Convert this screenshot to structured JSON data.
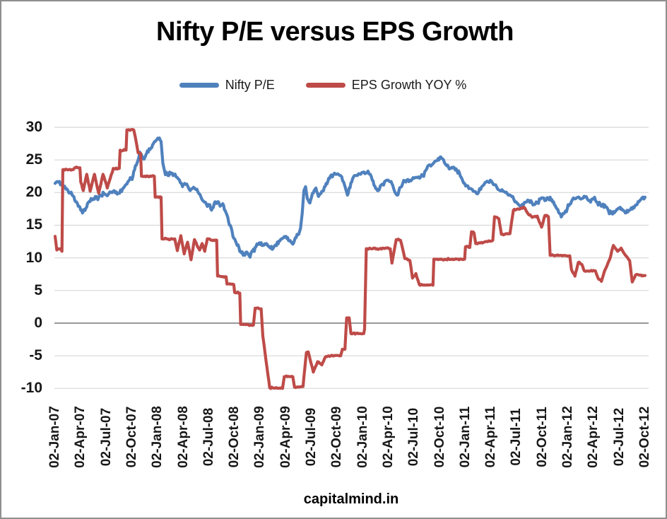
{
  "title": "Nifty P/E versus EPS Growth",
  "watermark": "capitalmind.in",
  "legend": [
    {
      "label": "Nifty P/E",
      "color": "#4F81BD"
    },
    {
      "label": "EPS Growth YOY %",
      "color": "#BE4B48"
    }
  ],
  "colors": {
    "gridline": "#d7d7d7",
    "zero_line": "#8a8a8a",
    "background": "#ffffff",
    "text": "#171717",
    "border": "#8f8f8f"
  },
  "chart_data": {
    "type": "line",
    "title": "Nifty P/E versus EPS Growth",
    "xlabel": "capitalmind.in",
    "ylabel": "",
    "x_unit": "months since 02-Jan-2007",
    "ylim": [
      -10,
      30
    ],
    "grid": true,
    "legend_position": "top",
    "y_ticks": [
      30,
      25,
      20,
      15,
      10,
      5,
      0,
      -5,
      -10
    ],
    "x_tick_month_offsets": [
      0,
      3,
      6,
      9,
      12,
      15,
      18,
      21,
      24,
      27,
      30,
      33,
      36,
      39,
      42,
      45,
      48,
      51,
      54,
      57,
      60,
      63,
      66,
      69
    ],
    "x_ticklabels": [
      "02-Jan-07",
      "02-Apr-07",
      "02-Jul-07",
      "02-Oct-07",
      "02-Jan-08",
      "02-Apr-08",
      "02-Jul-08",
      "02-Oct-08",
      "02-Jan-09",
      "02-Apr-09",
      "02-Jul-09",
      "02-Oct-09",
      "02-Jan-10",
      "02-Apr-10",
      "02-Jul-10",
      "02-Oct-10",
      "02-Jan-11",
      "02-Apr-11",
      "02-Jul-11",
      "02-Oct-11",
      "02-Jan-12",
      "02-Apr-12",
      "02-Jul-12",
      "02-Oct-12"
    ],
    "series": [
      {
        "name": "Nifty P/E",
        "color": "#4F81BD",
        "points": [
          [
            0,
            21.4
          ],
          [
            0.5,
            21.7
          ],
          [
            1,
            21.0
          ],
          [
            1.5,
            20.3
          ],
          [
            2,
            19.6
          ],
          [
            2.4,
            18.6
          ],
          [
            2.7,
            17.9
          ],
          [
            3,
            17.3
          ],
          [
            3.3,
            17.1
          ],
          [
            3.6,
            17.6
          ],
          [
            3.9,
            18.5
          ],
          [
            4.3,
            19.0
          ],
          [
            4.7,
            19.4
          ],
          [
            5,
            18.9
          ],
          [
            5.3,
            19.6
          ],
          [
            5.7,
            19.9
          ],
          [
            6.1,
            19.5
          ],
          [
            6.4,
            20.1
          ],
          [
            6.9,
            20.3
          ],
          [
            7.4,
            19.9
          ],
          [
            7.9,
            20.6
          ],
          [
            8.4,
            21.3
          ],
          [
            8.8,
            22.3
          ],
          [
            9,
            22.0
          ],
          [
            9.3,
            23.5
          ],
          [
            9.6,
            24.6
          ],
          [
            9.9,
            26.2
          ],
          [
            10.1,
            25.8
          ],
          [
            10.4,
            25.1
          ],
          [
            10.7,
            26.0
          ],
          [
            11.1,
            26.6
          ],
          [
            11.4,
            27.3
          ],
          [
            11.8,
            28.0
          ],
          [
            12.1,
            28.2
          ],
          [
            12.4,
            27.8
          ],
          [
            12.6,
            24.5
          ],
          [
            12.8,
            23.3
          ],
          [
            13.2,
            22.6
          ],
          [
            13.6,
            23.0
          ],
          [
            13.9,
            22.7
          ],
          [
            14.4,
            22.1
          ],
          [
            14.9,
            20.9
          ],
          [
            15.4,
            21.3
          ],
          [
            15.8,
            20.3
          ],
          [
            16.2,
            20.8
          ],
          [
            16.7,
            20.1
          ],
          [
            17.2,
            18.9
          ],
          [
            17.7,
            18.2
          ],
          [
            18,
            18.0
          ],
          [
            18.3,
            17.3
          ],
          [
            18.6,
            18.3
          ],
          [
            19,
            18.6
          ],
          [
            19.3,
            17.9
          ],
          [
            19.6,
            18.3
          ],
          [
            20,
            16.9
          ],
          [
            20.3,
            15.5
          ],
          [
            20.6,
            14.6
          ],
          [
            20.9,
            13.0
          ],
          [
            21.3,
            11.9
          ],
          [
            21.7,
            11.0
          ],
          [
            22,
            10.4
          ],
          [
            22.4,
            10.9
          ],
          [
            22.7,
            10.3
          ],
          [
            23.1,
            11.0
          ],
          [
            23.5,
            11.7
          ],
          [
            23.9,
            12.3
          ],
          [
            24.3,
            11.9
          ],
          [
            24.7,
            12.2
          ],
          [
            25.1,
            11.6
          ],
          [
            25.4,
            11.3
          ],
          [
            25.8,
            12.0
          ],
          [
            26.2,
            12.6
          ],
          [
            26.6,
            13.0
          ],
          [
            27,
            13.3
          ],
          [
            27.4,
            12.6
          ],
          [
            27.8,
            12.1
          ],
          [
            28.2,
            13.1
          ],
          [
            28.5,
            13.6
          ],
          [
            28.7,
            14.5
          ],
          [
            28.9,
            16.8
          ],
          [
            29.1,
            20.3
          ],
          [
            29.3,
            20.9
          ],
          [
            29.5,
            19.1
          ],
          [
            29.8,
            18.4
          ],
          [
            30.1,
            19.9
          ],
          [
            30.5,
            20.7
          ],
          [
            30.8,
            19.4
          ],
          [
            31.2,
            20.2
          ],
          [
            31.5,
            20.9
          ],
          [
            31.9,
            21.7
          ],
          [
            32.3,
            22.7
          ],
          [
            32.8,
            22.8
          ],
          [
            33.4,
            22.6
          ],
          [
            34,
            20.5
          ],
          [
            34.2,
            19.6
          ],
          [
            34.6,
            21.5
          ],
          [
            35,
            22.6
          ],
          [
            35.5,
            22.9
          ],
          [
            36,
            23.1
          ],
          [
            36.6,
            23.3
          ],
          [
            37.1,
            21.9
          ],
          [
            37.5,
            20.6
          ],
          [
            37.8,
            20.3
          ],
          [
            38.3,
            21.3
          ],
          [
            38.8,
            21.9
          ],
          [
            39.3,
            21.7
          ],
          [
            39.7,
            20.2
          ],
          [
            40,
            19.6
          ],
          [
            40.4,
            20.8
          ],
          [
            40.9,
            21.8
          ],
          [
            41.5,
            21.9
          ],
          [
            42,
            22.2
          ],
          [
            42.5,
            22.4
          ],
          [
            43,
            22.6
          ],
          [
            43.7,
            24.2
          ],
          [
            44.2,
            24.4
          ],
          [
            44.7,
            24.9
          ],
          [
            45,
            25.4
          ],
          [
            45.3,
            25.2
          ],
          [
            45.8,
            24.1
          ],
          [
            46.2,
            23.7
          ],
          [
            46.6,
            23.9
          ],
          [
            47,
            23.4
          ],
          [
            47.4,
            22.5
          ],
          [
            47.9,
            21.4
          ],
          [
            48.4,
            20.6
          ],
          [
            48.9,
            20.2
          ],
          [
            49.4,
            19.8
          ],
          [
            49.9,
            20.9
          ],
          [
            50.4,
            21.6
          ],
          [
            50.9,
            21.9
          ],
          [
            51.4,
            21.2
          ],
          [
            51.9,
            20.4
          ],
          [
            52.4,
            20.2
          ],
          [
            52.9,
            19.8
          ],
          [
            53.4,
            19.4
          ],
          [
            53.9,
            18.6
          ],
          [
            54.4,
            17.9
          ],
          [
            54.9,
            18.5
          ],
          [
            55.4,
            18.8
          ],
          [
            55.9,
            18.1
          ],
          [
            56.4,
            18.5
          ],
          [
            56.9,
            19.2
          ],
          [
            57.4,
            18.8
          ],
          [
            57.9,
            19.3
          ],
          [
            58.3,
            18.6
          ],
          [
            58.7,
            17.5
          ],
          [
            59,
            16.8
          ],
          [
            59.3,
            16.5
          ],
          [
            59.7,
            17.2
          ],
          [
            60.1,
            18.0
          ],
          [
            60.5,
            18.9
          ],
          [
            61,
            19.2
          ],
          [
            61.5,
            19.0
          ],
          [
            62,
            19.3
          ],
          [
            62.5,
            18.8
          ],
          [
            63,
            19.0
          ],
          [
            63.4,
            18.5
          ],
          [
            63.9,
            17.9
          ],
          [
            64.3,
            18.1
          ],
          [
            64.7,
            17.3
          ],
          [
            65.2,
            16.7
          ],
          [
            65.6,
            17.2
          ],
          [
            66,
            17.6
          ],
          [
            66.4,
            17.3
          ],
          [
            66.8,
            16.9
          ],
          [
            67.2,
            17.3
          ],
          [
            67.6,
            17.8
          ],
          [
            68,
            18.1
          ],
          [
            68.4,
            18.8
          ],
          [
            69,
            19.3
          ]
        ]
      },
      {
        "name": "EPS Growth YOY %",
        "color": "#BE4B48",
        "points": [
          [
            0,
            13.3
          ],
          [
            0.2,
            11.2
          ],
          [
            0.6,
            11.4
          ],
          [
            0.8,
            11.0
          ],
          [
            0.9,
            23.5
          ],
          [
            2.1,
            23.5
          ],
          [
            2.5,
            23.9
          ],
          [
            2.9,
            23.8
          ],
          [
            3,
            21.6
          ],
          [
            3.3,
            20.3
          ],
          [
            3.7,
            22.8
          ],
          [
            4.1,
            20.2
          ],
          [
            4.6,
            22.8
          ],
          [
            5.1,
            19.9
          ],
          [
            5.6,
            22.8
          ],
          [
            6.1,
            20.7
          ],
          [
            6.8,
            23.7
          ],
          [
            7.5,
            23.7
          ],
          [
            7.6,
            26.5
          ],
          [
            8.3,
            26.5
          ],
          [
            8.4,
            29.6
          ],
          [
            9.2,
            29.6
          ],
          [
            9.4,
            28.4
          ],
          [
            9.7,
            26.1
          ],
          [
            10,
            26.0
          ],
          [
            10.1,
            22.5
          ],
          [
            11.6,
            22.5
          ],
          [
            11.7,
            19.3
          ],
          [
            12.4,
            19.3
          ],
          [
            12.5,
            12.9
          ],
          [
            14,
            12.9
          ],
          [
            14.3,
            11.1
          ],
          [
            14.7,
            13.4
          ],
          [
            15.1,
            10.6
          ],
          [
            15.5,
            12.4
          ],
          [
            15.9,
            9.7
          ],
          [
            16.3,
            12.8
          ],
          [
            16.6,
            11.9
          ],
          [
            16.9,
            11.2
          ],
          [
            17.2,
            12.2
          ],
          [
            17.5,
            11.0
          ],
          [
            17.8,
            12.9
          ],
          [
            18.3,
            12.7
          ],
          [
            18.9,
            12.7
          ],
          [
            19,
            7.2
          ],
          [
            20,
            7.1
          ],
          [
            20.1,
            6.0
          ],
          [
            20.9,
            5.9
          ],
          [
            21,
            4.7
          ],
          [
            21.6,
            4.6
          ],
          [
            21.7,
            -0.2
          ],
          [
            23.2,
            -0.3
          ],
          [
            23.4,
            2.3
          ],
          [
            24.1,
            2.2
          ],
          [
            24.3,
            -2.0
          ],
          [
            24.8,
            -7.0
          ],
          [
            25.1,
            -9.9
          ],
          [
            26.6,
            -10.0
          ],
          [
            26.8,
            -8.2
          ],
          [
            27.8,
            -8.2
          ],
          [
            28,
            -9.8
          ],
          [
            29,
            -9.7
          ],
          [
            29.4,
            -4.5
          ],
          [
            29.6,
            -4.4
          ],
          [
            30.2,
            -7.5
          ],
          [
            30.7,
            -5.9
          ],
          [
            31.2,
            -6.4
          ],
          [
            31.6,
            -5.2
          ],
          [
            32,
            -5.0
          ],
          [
            33.4,
            -5.0
          ],
          [
            33.6,
            -4.0
          ],
          [
            33.9,
            -4.0
          ],
          [
            34.1,
            0.8
          ],
          [
            34.4,
            0.8
          ],
          [
            34.6,
            -1.6
          ],
          [
            36.1,
            -1.6
          ],
          [
            36.2,
            -0.9
          ],
          [
            36.4,
            11.4
          ],
          [
            39.2,
            11.4
          ],
          [
            39.4,
            9.2
          ],
          [
            39.9,
            12.8
          ],
          [
            40.4,
            12.7
          ],
          [
            40.9,
            9.9
          ],
          [
            41.5,
            9.6
          ],
          [
            41.8,
            6.9
          ],
          [
            42.2,
            7.6
          ],
          [
            42.6,
            5.9
          ],
          [
            44.2,
            5.8
          ],
          [
            44.3,
            9.8
          ],
          [
            47.9,
            9.8
          ],
          [
            48,
            11.7
          ],
          [
            48.5,
            11.6
          ],
          [
            48.7,
            14.0
          ],
          [
            49,
            13.8
          ],
          [
            49.2,
            12.2
          ],
          [
            49.6,
            12.3
          ],
          [
            51.2,
            12.7
          ],
          [
            51.4,
            16.3
          ],
          [
            51.9,
            16.0
          ],
          [
            52.2,
            13.6
          ],
          [
            53.2,
            13.7
          ],
          [
            53.6,
            17.3
          ],
          [
            54.4,
            17.5
          ],
          [
            54.9,
            17.7
          ],
          [
            55.3,
            16.8
          ],
          [
            55.8,
            16.2
          ],
          [
            56.4,
            16.4
          ],
          [
            56.9,
            14.7
          ],
          [
            57.3,
            16.5
          ],
          [
            57.7,
            16.3
          ],
          [
            57.9,
            10.4
          ],
          [
            60.2,
            10.3
          ],
          [
            60.4,
            8.2
          ],
          [
            60.8,
            7.2
          ],
          [
            61.2,
            9.3
          ],
          [
            61.6,
            9.0
          ],
          [
            61.9,
            8.0
          ],
          [
            63.2,
            8.0
          ],
          [
            63.5,
            6.9
          ],
          [
            63.9,
            6.4
          ],
          [
            64.3,
            8.1
          ],
          [
            64.9,
            9.9
          ],
          [
            65.3,
            11.9
          ],
          [
            65.8,
            11.0
          ],
          [
            66.2,
            11.5
          ],
          [
            66.6,
            10.6
          ],
          [
            67.2,
            9.6
          ],
          [
            67.5,
            6.3
          ],
          [
            67.9,
            7.4
          ],
          [
            69,
            7.3
          ]
        ]
      }
    ]
  }
}
